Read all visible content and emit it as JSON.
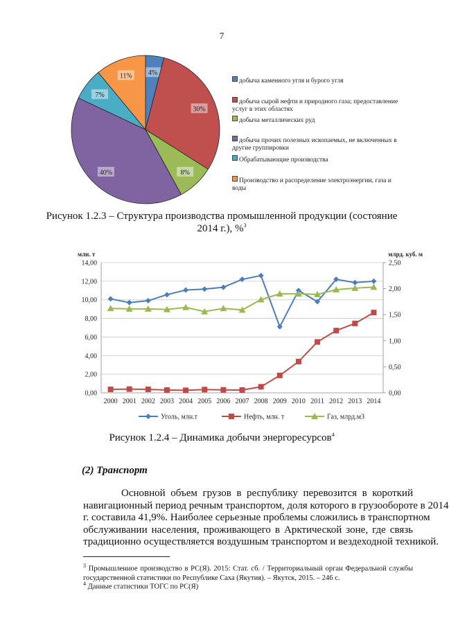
{
  "page_number": "7",
  "figure_1": {
    "caption_line1": "Рисунок 1.2.3 – Структура производства промышленной продукции (состояние",
    "caption_line2": "2014 г.), %",
    "caption_ref": "3"
  },
  "figure_2": {
    "caption": "Рисунок 1.2.4 – Динамика добычи энергоресурсов",
    "caption_ref": "4"
  },
  "section_heading": "(2) Транспорт",
  "paragraph_lines": [
    "Основной объем грузов в республику перевозится в короткий",
    "навигационный период речным транспортом, доля которого в грузообороте в 2014",
    "г. составила 41,9%. Наиболее серьезные проблемы сложились в транспортном",
    "обслуживании населения, проживающего в Арктической зоне, где связь",
    "традиционно осуществляется воздушным транспортом и вездеходной техникой."
  ],
  "footnotes": [
    {
      "mark": "3",
      "text": "Промышленное производство в РС(Я). 2015: Стат. сб. / Территориальный орган Федеральной службы государственной статистики по Республике Саха (Якутия). – Якутск, 2015. – 246 с."
    },
    {
      "mark": "4",
      "text": "Данные статистики ТОГС по РС(Я)"
    }
  ],
  "chart_data": [
    {
      "type": "pie",
      "slices": [
        {
          "name": "добыча каменного угля и бурого угля",
          "value": 4,
          "label": "4%",
          "color": "#4f81bd"
        },
        {
          "name": "добыча сырой нефти и природного газа; предоставление услуг в этих областях",
          "value": 30,
          "label": "30%",
          "color": "#c0504d"
        },
        {
          "name": "добыча металлических руд",
          "value": 8,
          "label": "8%",
          "color": "#9bbb59"
        },
        {
          "name": "добыча прочих полезных ископаемых, не включенных в другие группировки",
          "value": 40,
          "label": "40%",
          "color": "#8064a2"
        },
        {
          "name": "Обрабатывающие производства",
          "value": 7,
          "label": "7%",
          "color": "#4bacc6"
        },
        {
          "name": "Производство и распределение электроэнергии, газа и воды",
          "value": 11,
          "label": "11%",
          "color": "#f79646"
        }
      ],
      "legend": "right"
    },
    {
      "type": "line",
      "x": [
        "2000",
        "2001",
        "2002",
        "2003",
        "2004",
        "2005",
        "2006",
        "2007",
        "2008",
        "2009",
        "2010",
        "2011",
        "2012",
        "2013",
        "2014"
      ],
      "ylabel": "млн. т",
      "y2label": "млрд. куб. м",
      "ylim": [
        0,
        14
      ],
      "y2lim": [
        0,
        2.5
      ],
      "yticks": [
        "0,00",
        "2,00",
        "4,00",
        "6,00",
        "8,00",
        "10,00",
        "12,00",
        "14,00"
      ],
      "y2ticks": [
        "0,00",
        "0,50",
        "1,00",
        "1,50",
        "2,00",
        "2,50"
      ],
      "grid": true,
      "legend": "bottom",
      "series": [
        {
          "name": "Уголь, млн.т",
          "axis": "left",
          "color": "#4a7ebb",
          "marker": "diamond",
          "values": [
            10.1,
            9.7,
            9.9,
            10.55,
            11.05,
            11.15,
            11.35,
            12.2,
            12.6,
            7.1,
            11.0,
            9.8,
            12.2,
            11.85,
            12.0
          ]
        },
        {
          "name": "Нефть, млн. т",
          "axis": "left",
          "color": "#be4b48",
          "marker": "square",
          "values": [
            0.37,
            0.4,
            0.37,
            0.3,
            0.27,
            0.35,
            0.32,
            0.3,
            0.65,
            1.87,
            3.36,
            5.47,
            6.69,
            7.46,
            8.63
          ]
        },
        {
          "name": "Газ, млрд.м3",
          "axis": "right",
          "color": "#98b954",
          "marker": "triangle",
          "values": [
            1.62,
            1.61,
            1.61,
            1.6,
            1.64,
            1.56,
            1.62,
            1.59,
            1.79,
            1.9,
            1.9,
            1.89,
            1.98,
            2.01,
            2.03
          ]
        }
      ]
    }
  ]
}
